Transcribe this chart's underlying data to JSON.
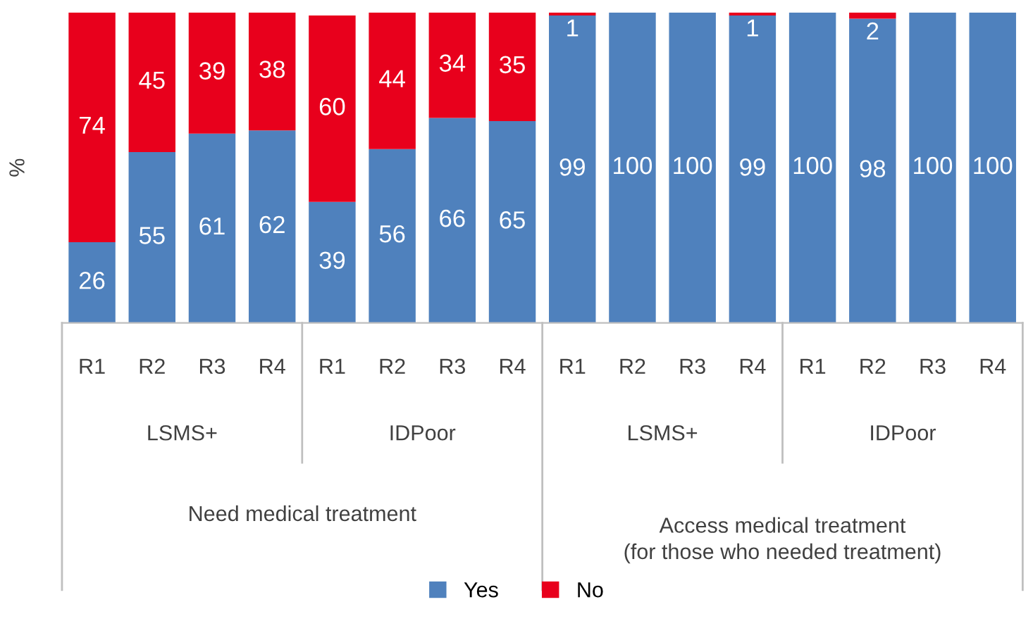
{
  "chart_data": {
    "type": "bar",
    "stacked": true,
    "ylabel": "%",
    "categories": [
      "R1",
      "R2",
      "R3",
      "R4",
      "R1",
      "R2",
      "R3",
      "R4",
      "R1",
      "R2",
      "R3",
      "R4",
      "R1",
      "R2",
      "R3",
      "R4"
    ],
    "series": [
      {
        "name": "Yes",
        "color": "#4f81bd",
        "values": [
          26,
          55,
          61,
          62,
          39,
          56,
          66,
          65,
          99,
          100,
          100,
          99,
          100,
          98,
          100,
          100
        ],
        "value_labels": [
          "26",
          "55",
          "61",
          "62",
          "39",
          "56",
          "66",
          "65",
          "99",
          "100",
          "100",
          "99",
          "100",
          "98",
          "100",
          "100"
        ]
      },
      {
        "name": "No",
        "color": "#e8001c",
        "values": [
          74,
          45,
          39,
          38,
          60,
          44,
          34,
          35,
          1,
          0,
          0,
          1,
          0,
          2,
          0,
          0
        ],
        "value_labels": [
          "74",
          "45",
          "39",
          "38",
          "60",
          "44",
          "34",
          "35",
          "1",
          null,
          null,
          "1",
          null,
          "2",
          null,
          null
        ]
      }
    ],
    "ylim": [
      0,
      100
    ],
    "tick_labels": "x",
    "legend": "bottom",
    "annotations": [
      "LSMS+",
      "IDPoor",
      "LSMS+",
      "IDPoor",
      "Need medical treatment",
      "Access medical treatment\n(for those who needed treatment)"
    ]
  }
}
